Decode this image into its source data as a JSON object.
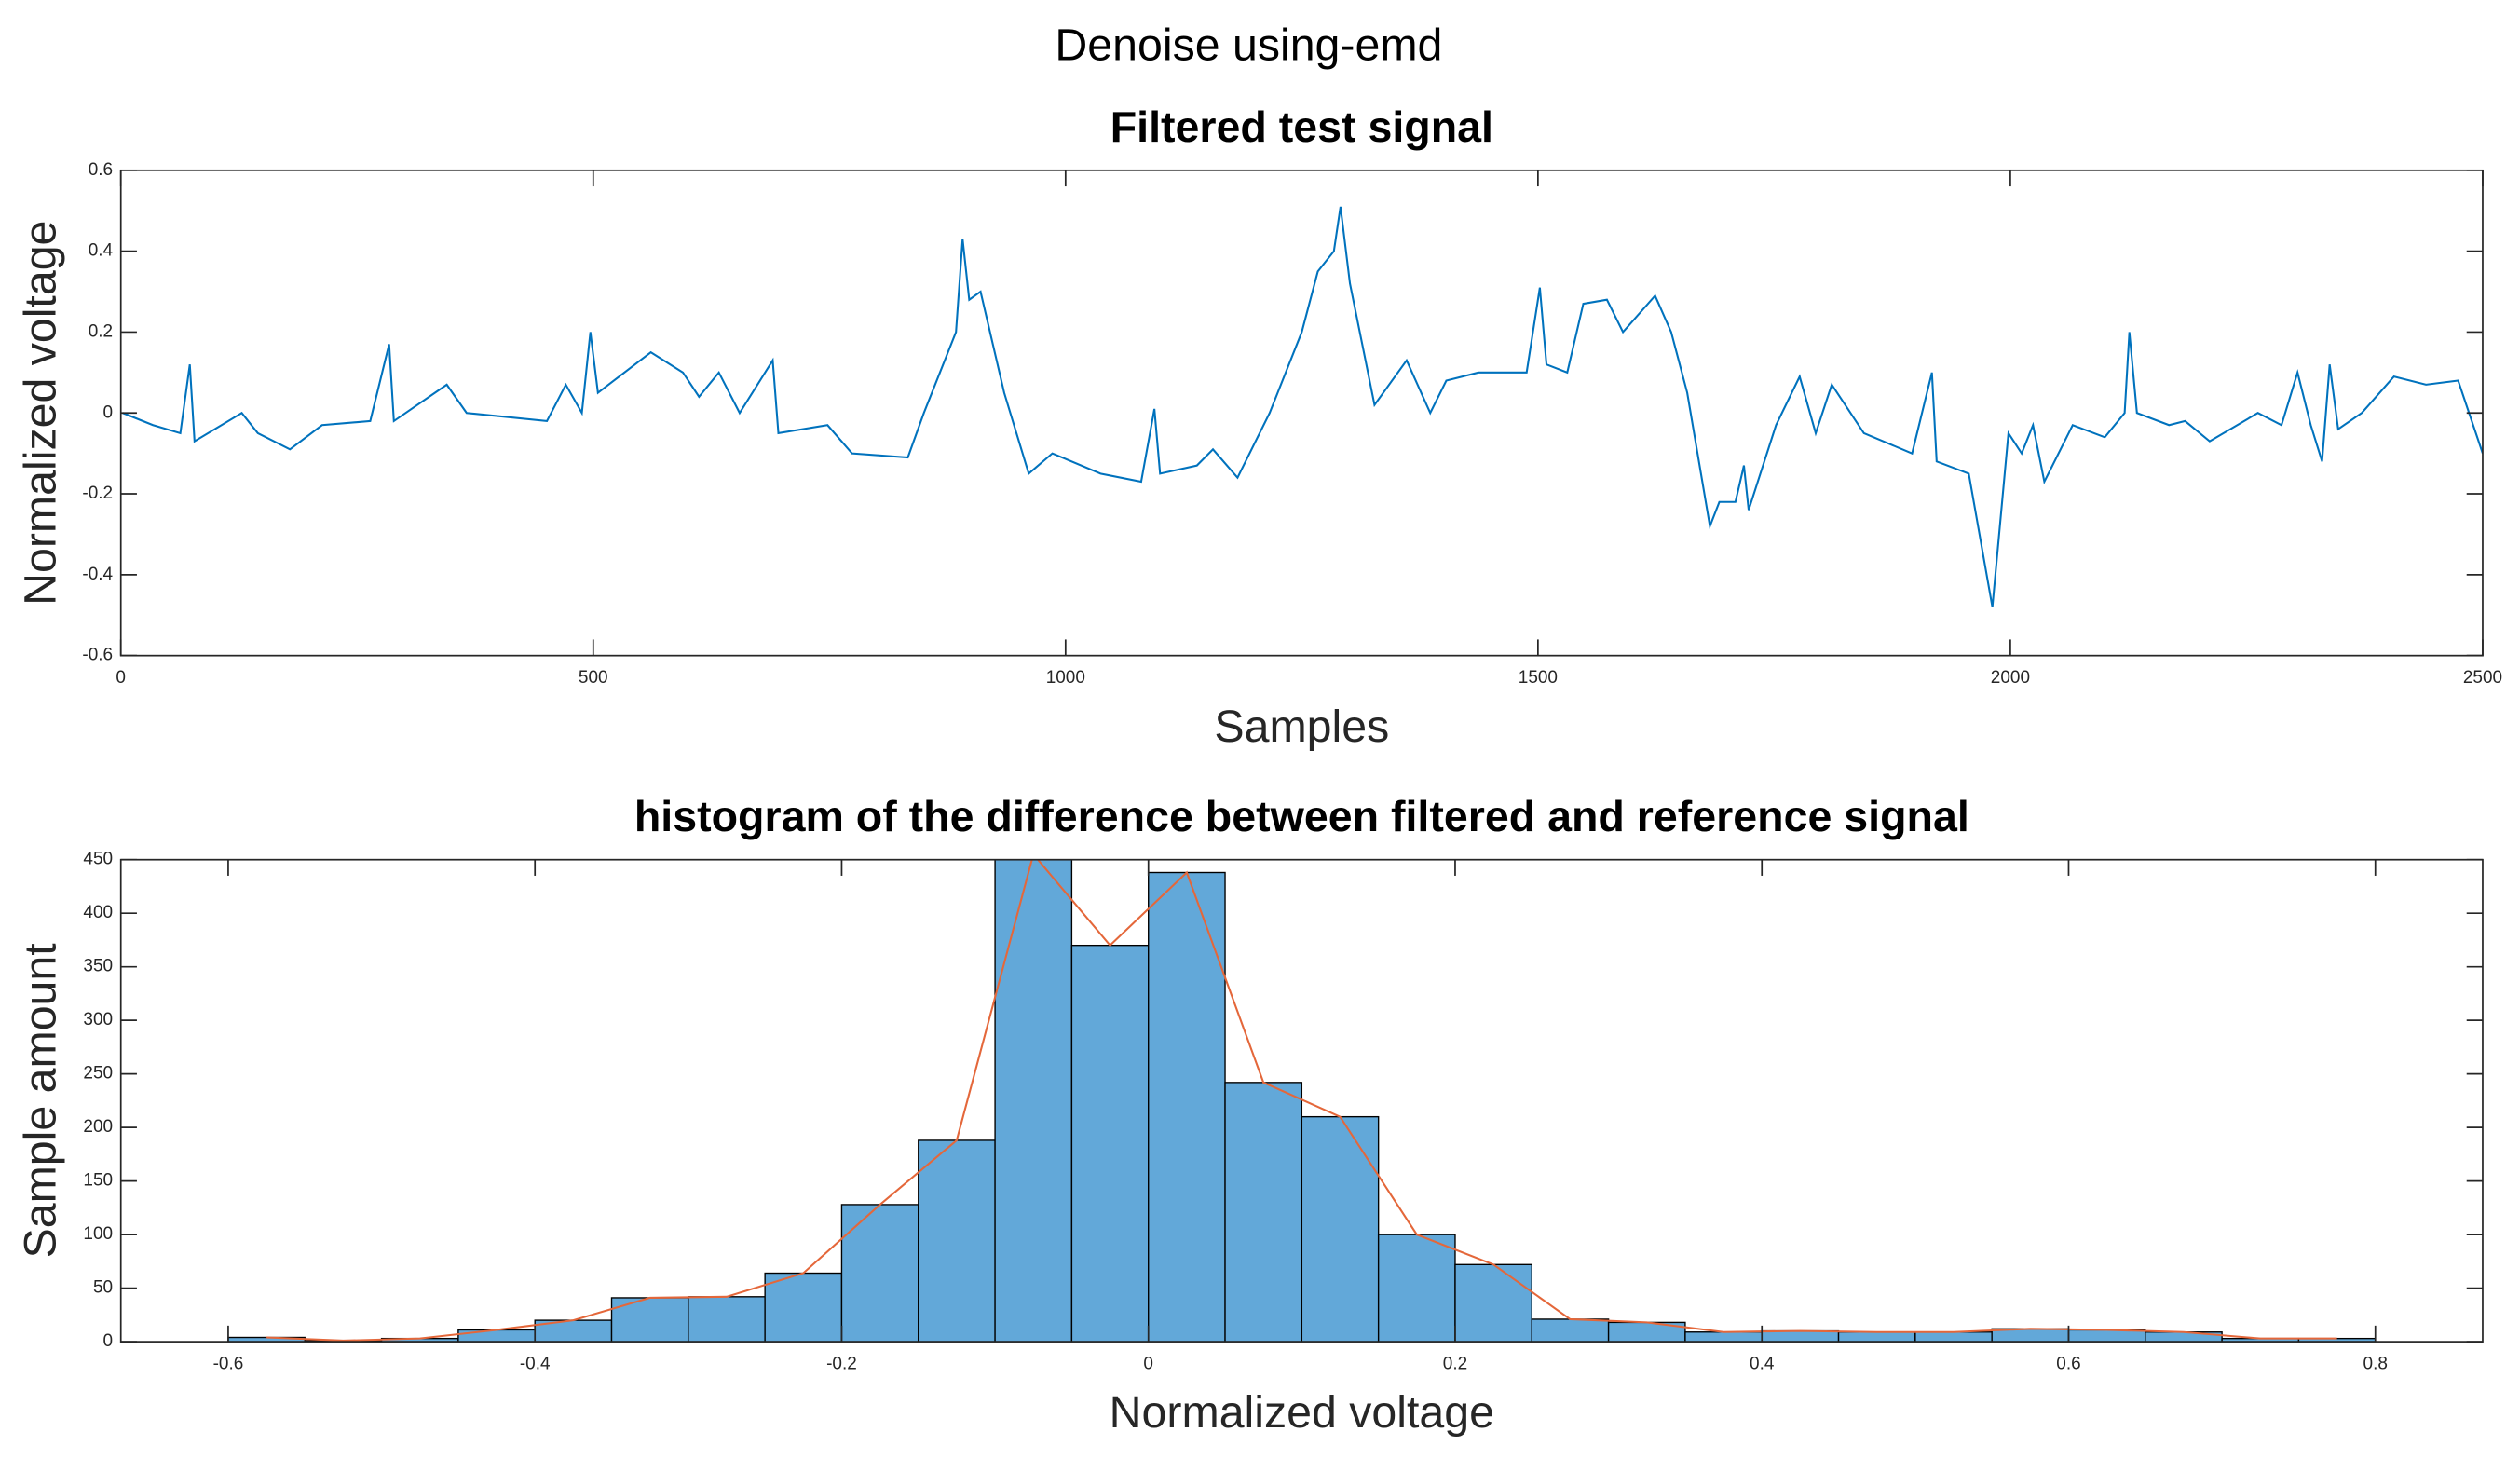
{
  "title": "Denoise using-emd",
  "chart_data": [
    {
      "type": "line",
      "title": "Filtered test signal",
      "xlabel": "Samples",
      "ylabel": "Normalized voltage",
      "xlim": [
        0,
        2500
      ],
      "ylim": [
        -0.6,
        0.6
      ],
      "xticks": [
        0,
        500,
        1000,
        1500,
        2000,
        2500
      ],
      "yticks": [
        -0.6,
        -0.4,
        -0.2,
        0,
        0.2,
        0.4,
        0.6
      ],
      "series": [
        {
          "color": "#0072bd",
          "x": [
            2,
            34,
            63,
            73,
            78,
            128,
            145,
            179,
            213,
            264,
            284,
            289,
            345,
            366,
            451,
            471,
            488,
            497,
            505,
            561,
            595,
            612,
            633,
            655,
            690,
            696,
            748,
            774,
            833,
            850,
            884,
            891,
            898,
            910,
            935,
            961,
            986,
            1037,
            1080,
            1094,
            1100,
            1139,
            1156,
            1182,
            1216,
            1250,
            1267,
            1284,
            1291,
            1301,
            1327,
            1361,
            1386,
            1403,
            1437,
            1488,
            1502,
            1509,
            1531,
            1548,
            1573,
            1590,
            1624,
            1641,
            1658,
            1682,
            1692,
            1709,
            1718,
            1723,
            1752,
            1777,
            1794,
            1811,
            1845,
            1896,
            1917,
            1922,
            1956,
            1981,
            1998,
            2012,
            2024,
            2036,
            2066,
            2100,
            2121,
            2126,
            2134,
            2168,
            2185,
            2211,
            2262,
            2287,
            2304,
            2318,
            2330,
            2338,
            2347,
            2372,
            2406,
            2440,
            2474,
            2500
          ],
          "values": [
            0,
            -0.03,
            -0.05,
            0.12,
            -0.07,
            0.0,
            -0.05,
            -0.09,
            -0.03,
            -0.02,
            0.17,
            -0.02,
            0.07,
            0.0,
            -0.02,
            0.07,
            0.0,
            0.2,
            0.05,
            0.15,
            0.1,
            0.04,
            0.1,
            0.0,
            0.13,
            -0.05,
            -0.03,
            -0.1,
            -0.11,
            0.0,
            0.2,
            0.43,
            0.28,
            0.3,
            0.05,
            -0.15,
            -0.1,
            -0.15,
            -0.17,
            0.01,
            -0.15,
            -0.13,
            -0.09,
            -0.16,
            0.0,
            0.2,
            0.35,
            0.4,
            0.51,
            0.32,
            0.02,
            0.13,
            0.0,
            0.08,
            0.1,
            0.1,
            0.31,
            0.12,
            0.1,
            0.27,
            0.28,
            0.2,
            0.29,
            0.2,
            0.05,
            -0.28,
            -0.22,
            -0.22,
            -0.13,
            -0.24,
            -0.03,
            0.09,
            -0.05,
            0.07,
            -0.05,
            -0.1,
            0.1,
            -0.12,
            -0.15,
            -0.48,
            -0.05,
            -0.1,
            -0.03,
            -0.17,
            -0.03,
            -0.06,
            0.0,
            0.2,
            0.0,
            -0.03,
            -0.02,
            -0.07,
            0.0,
            -0.03,
            0.1,
            -0.03,
            -0.12,
            0.12,
            -0.04,
            0.0,
            0.09,
            0.07,
            0.08,
            -0.1
          ]
        }
      ]
    },
    {
      "type": "histogram",
      "title": "histogram of the difference between filtered and reference signal",
      "xlabel": "Normalized voltage",
      "ylabel": "Sample amount",
      "xlim": [
        -0.67,
        0.87
      ],
      "ylim": [
        0,
        450
      ],
      "xticks": [
        -0.6,
        -0.4,
        -0.2,
        0,
        0.2,
        0.4,
        0.6,
        0.8
      ],
      "yticks": [
        0,
        50,
        100,
        150,
        200,
        250,
        300,
        350,
        400,
        450
      ],
      "color": "#62a8d9",
      "line_color": "#e4673a",
      "bins": [
        -0.6,
        -0.55,
        -0.5,
        -0.45,
        -0.4,
        -0.35,
        -0.3,
        -0.25,
        -0.2,
        -0.15,
        -0.1,
        -0.05,
        0,
        0.05,
        0.1,
        0.15,
        0.2,
        0.25,
        0.3,
        0.35,
        0.4,
        0.45,
        0.5,
        0.55,
        0.6,
        0.65,
        0.7,
        0.75,
        0.8
      ],
      "values": [
        4,
        1,
        3,
        11,
        20,
        41,
        42,
        64,
        128,
        188,
        455,
        370,
        438,
        242,
        210,
        100,
        72,
        21,
        18,
        9,
        10,
        9,
        9,
        12,
        11,
        9,
        3,
        3
      ]
    }
  ]
}
